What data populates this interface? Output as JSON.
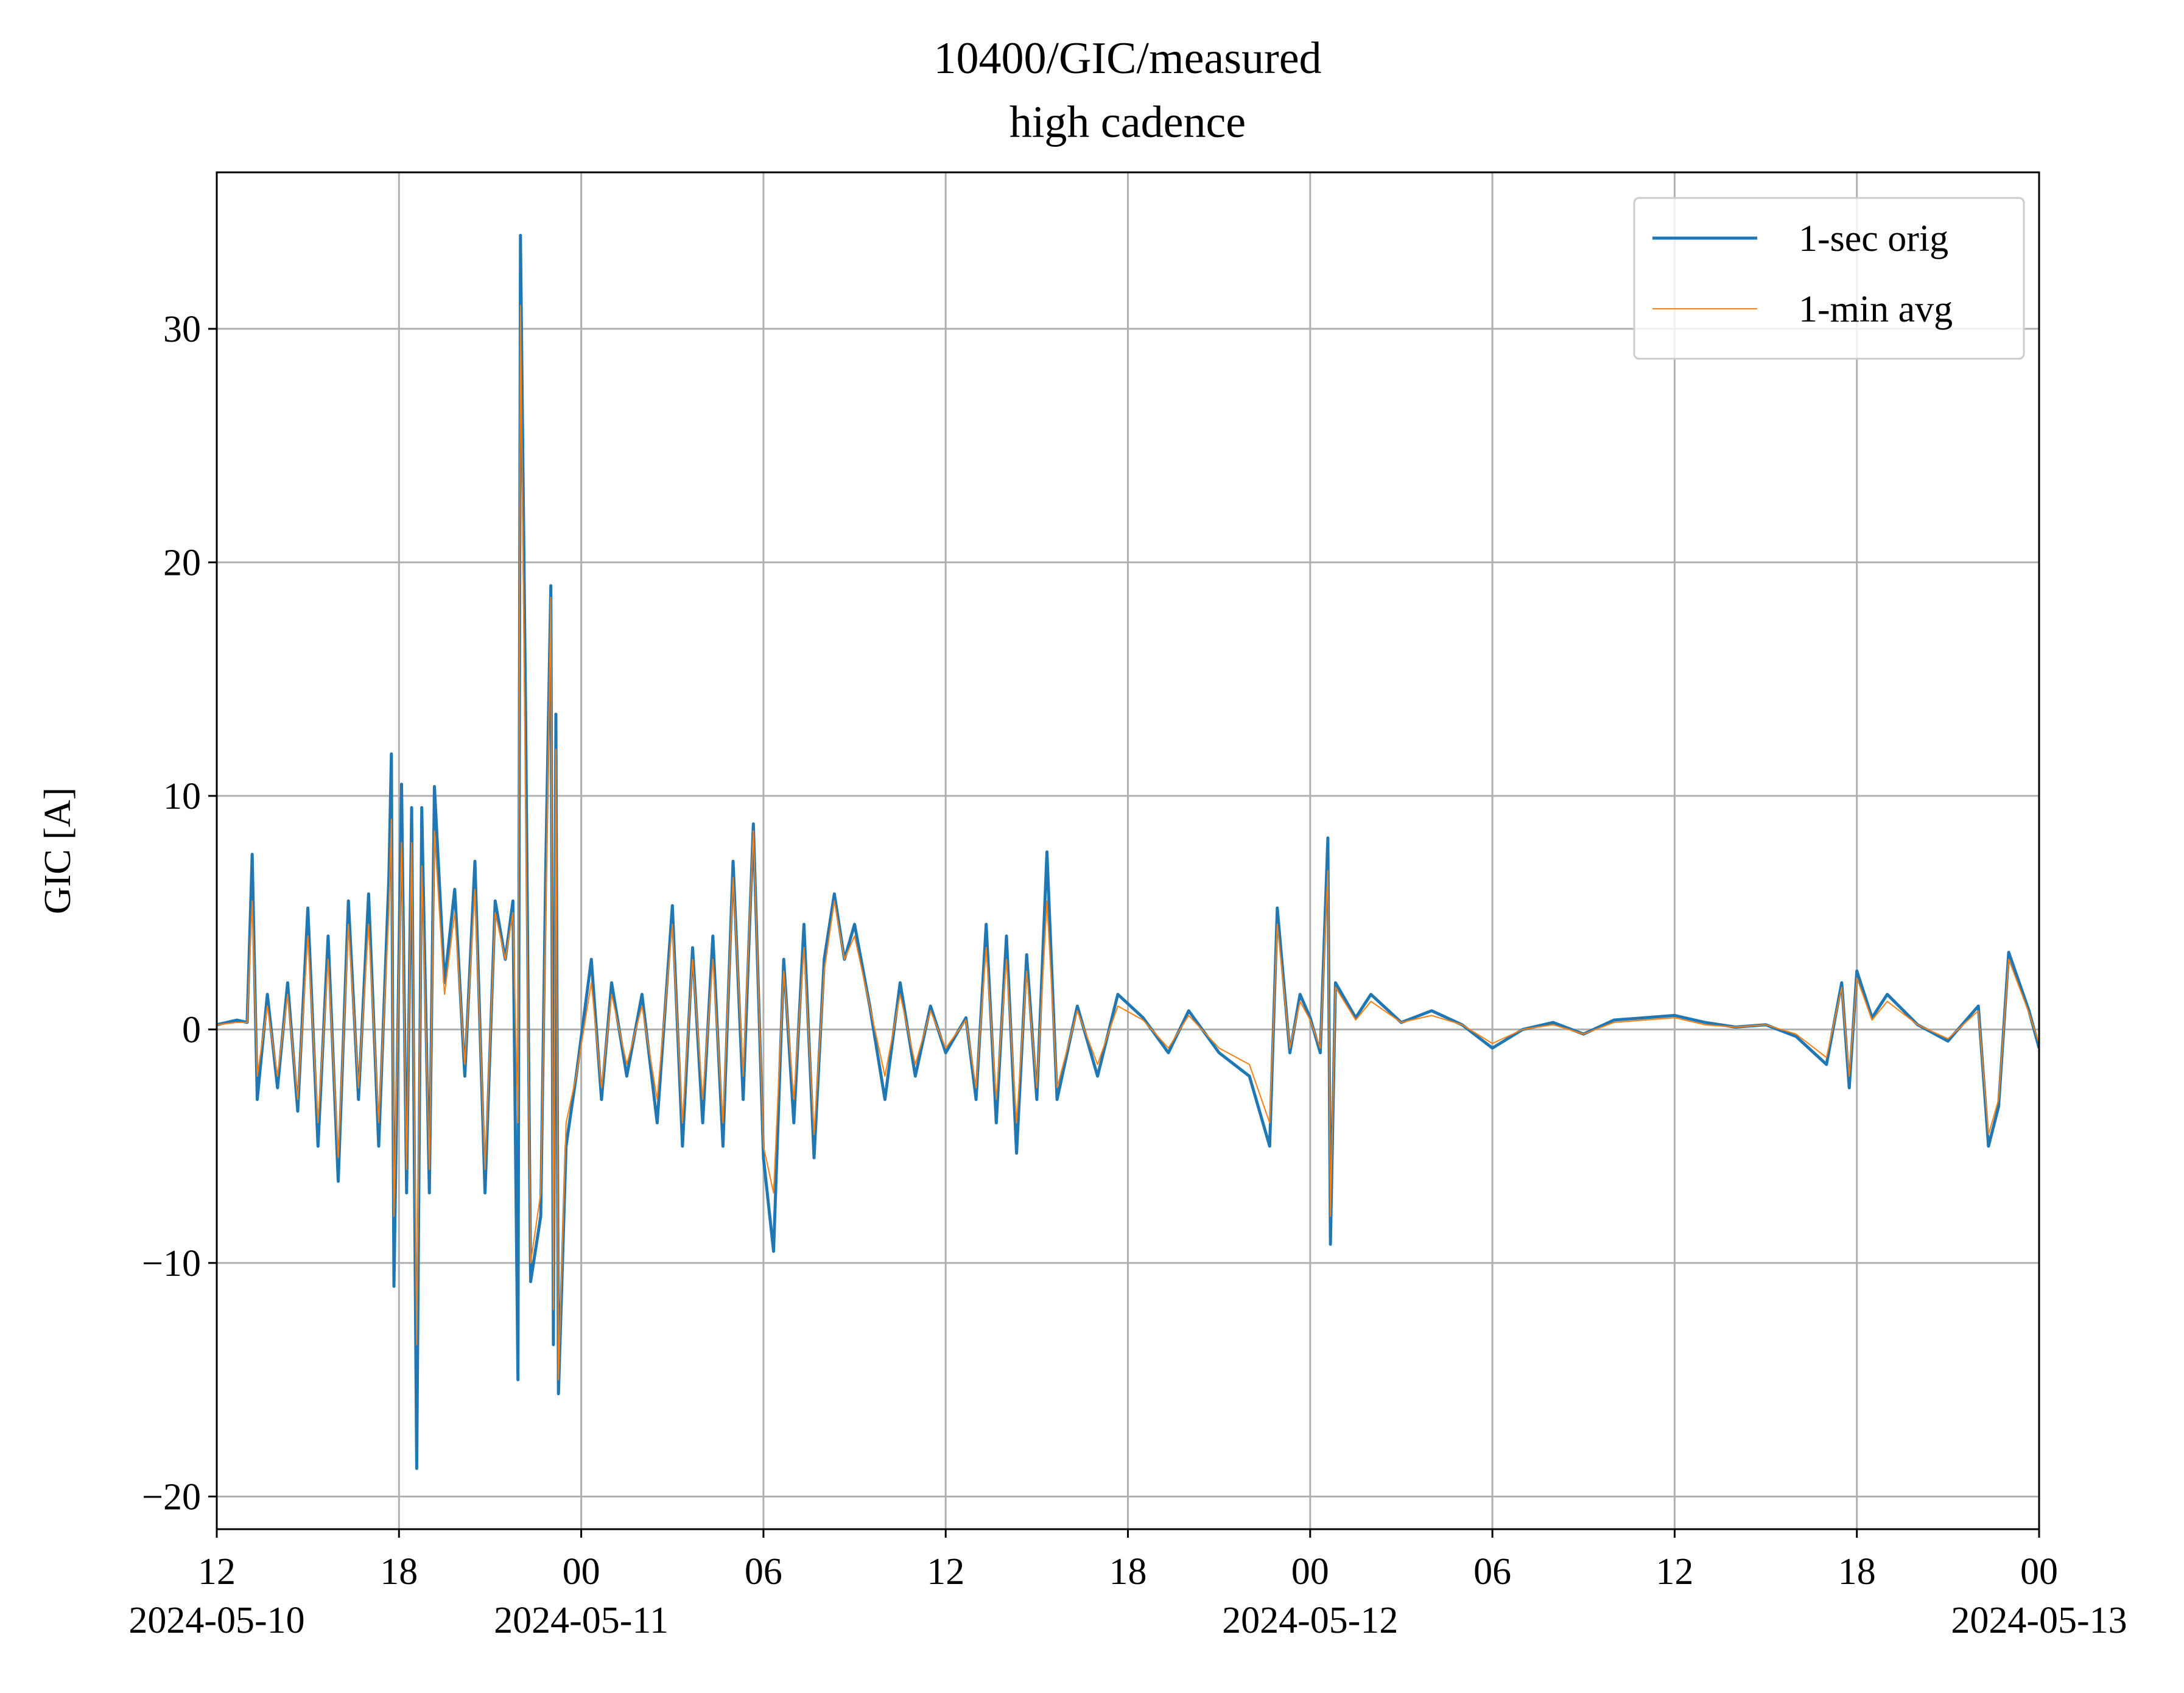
{
  "chart_data": {
    "type": "line",
    "title": "10400/GIC/measured",
    "subtitle": "high cadence",
    "y_label": "GIC [A]",
    "x": [
      "2024-05-10 12:00",
      "2024-05-10 12:40",
      "2024-05-10 13:00",
      "2024-05-10 13:10",
      "2024-05-10 13:20",
      "2024-05-10 13:40",
      "2024-05-10 14:00",
      "2024-05-10 14:20",
      "2024-05-10 14:40",
      "2024-05-10 15:00",
      "2024-05-10 15:20",
      "2024-05-10 15:40",
      "2024-05-10 16:00",
      "2024-05-10 16:20",
      "2024-05-10 16:40",
      "2024-05-10 17:00",
      "2024-05-10 17:20",
      "2024-05-10 17:40",
      "2024-05-10 17:45",
      "2024-05-10 17:50",
      "2024-05-10 18:05",
      "2024-05-10 18:15",
      "2024-05-10 18:25",
      "2024-05-10 18:35",
      "2024-05-10 18:45",
      "2024-05-10 19:00",
      "2024-05-10 19:10",
      "2024-05-10 19:30",
      "2024-05-10 19:50",
      "2024-05-10 20:10",
      "2024-05-10 20:30",
      "2024-05-10 20:50",
      "2024-05-10 21:10",
      "2024-05-10 21:30",
      "2024-05-10 21:45",
      "2024-05-10 21:55",
      "2024-05-10 22:00",
      "2024-05-10 22:10",
      "2024-05-10 22:20",
      "2024-05-10 22:40",
      "2024-05-10 22:50",
      "2024-05-10 23:00",
      "2024-05-10 23:05",
      "2024-05-10 23:10",
      "2024-05-10 23:15",
      "2024-05-10 23:30",
      "2024-05-10 23:50",
      "2024-05-11 00:20",
      "2024-05-11 00:40",
      "2024-05-11 01:00",
      "2024-05-11 01:30",
      "2024-05-11 02:00",
      "2024-05-11 02:30",
      "2024-05-11 03:00",
      "2024-05-11 03:20",
      "2024-05-11 03:40",
      "2024-05-11 04:00",
      "2024-05-11 04:20",
      "2024-05-11 04:40",
      "2024-05-11 05:00",
      "2024-05-11 05:20",
      "2024-05-11 05:40",
      "2024-05-11 06:00",
      "2024-05-11 06:20",
      "2024-05-11 06:40",
      "2024-05-11 07:00",
      "2024-05-11 07:20",
      "2024-05-11 07:40",
      "2024-05-11 08:00",
      "2024-05-11 08:20",
      "2024-05-11 08:40",
      "2024-05-11 09:00",
      "2024-05-11 09:30",
      "2024-05-11 10:00",
      "2024-05-11 10:30",
      "2024-05-11 11:00",
      "2024-05-11 11:30",
      "2024-05-11 12:00",
      "2024-05-11 12:40",
      "2024-05-11 13:00",
      "2024-05-11 13:20",
      "2024-05-11 13:40",
      "2024-05-11 14:00",
      "2024-05-11 14:20",
      "2024-05-11 14:40",
      "2024-05-11 15:00",
      "2024-05-11 15:20",
      "2024-05-11 15:40",
      "2024-05-11 16:20",
      "2024-05-11 17:00",
      "2024-05-11 17:40",
      "2024-05-11 18:30",
      "2024-05-11 19:20",
      "2024-05-11 20:00",
      "2024-05-11 21:00",
      "2024-05-11 22:00",
      "2024-05-11 22:40",
      "2024-05-11 22:55",
      "2024-05-11 23:20",
      "2024-05-11 23:40",
      "2024-05-12 00:00",
      "2024-05-12 00:20",
      "2024-05-12 00:35",
      "2024-05-12 00:40",
      "2024-05-12 00:50",
      "2024-05-12 01:30",
      "2024-05-12 02:00",
      "2024-05-12 03:00",
      "2024-05-12 04:00",
      "2024-05-12 05:00",
      "2024-05-12 06:00",
      "2024-05-12 07:00",
      "2024-05-12 08:00",
      "2024-05-12 09:00",
      "2024-05-12 10:00",
      "2024-05-12 11:00",
      "2024-05-12 12:00",
      "2024-05-12 13:00",
      "2024-05-12 14:00",
      "2024-05-12 15:00",
      "2024-05-12 16:00",
      "2024-05-12 17:00",
      "2024-05-12 17:30",
      "2024-05-12 17:45",
      "2024-05-12 18:00",
      "2024-05-12 18:30",
      "2024-05-12 19:00",
      "2024-05-12 20:00",
      "2024-05-12 21:00",
      "2024-05-12 22:00",
      "2024-05-12 22:20",
      "2024-05-12 22:40",
      "2024-05-12 23:00",
      "2024-05-12 23:40",
      "2024-05-13 00:00"
    ],
    "series": [
      {
        "name": "1-sec orig",
        "color": "#1f77b4",
        "width": 5,
        "values": [
          0.2,
          0.4,
          0.3,
          7.5,
          -3.0,
          1.5,
          -2.5,
          2.0,
          -3.5,
          5.2,
          -5.0,
          4.0,
          -6.5,
          5.5,
          -3.0,
          5.8,
          -5.0,
          6.5,
          11.8,
          -11,
          10.5,
          -7,
          9.5,
          -18.8,
          9.5,
          -7,
          10.4,
          2,
          6,
          -2,
          7.2,
          -7,
          5.5,
          3,
          5.5,
          -15,
          34,
          14,
          -10.8,
          -8,
          7,
          19,
          -13.5,
          13.5,
          -15.6,
          -5,
          -2,
          3,
          -3,
          2,
          -2,
          1.5,
          -4,
          5.3,
          -5,
          3.5,
          -4,
          4,
          -5,
          7.2,
          -3,
          8.8,
          -5.5,
          -9.5,
          3,
          -4,
          4.5,
          -5.5,
          3,
          5.8,
          3,
          4.5,
          1,
          -3,
          2,
          -2,
          1,
          -1,
          0.5,
          -3,
          4.5,
          -4,
          4,
          -5.3,
          3.2,
          -3,
          7.6,
          -3,
          1,
          -2,
          1.5,
          0.5,
          -1,
          0.8,
          -1,
          -2,
          -5,
          5.2,
          -1,
          1.5,
          0.5,
          -1,
          8.2,
          -9.2,
          2,
          0.5,
          1.5,
          0.3,
          0.8,
          0.2,
          -0.8,
          0,
          0.3,
          -0.2,
          0.4,
          0.5,
          0.6,
          0.3,
          0.1,
          0.2,
          -0.3,
          -1.5,
          2,
          -2.5,
          2.5,
          0.5,
          1.5,
          0.2,
          -0.5,
          1,
          -5,
          -3.3,
          3.3,
          0.8,
          -0.8
        ]
      },
      {
        "name": "1-min avg",
        "color": "#ff7f0e",
        "width": 2,
        "values": [
          0.2,
          0.3,
          0.3,
          5.5,
          -2.0,
          1.0,
          -2.0,
          1.5,
          -3.0,
          4.0,
          -4.0,
          3.0,
          -5.5,
          4.5,
          -2.5,
          4.5,
          -4.0,
          5.0,
          9,
          -8,
          8,
          -6,
          8,
          -13.5,
          7,
          -6,
          8.5,
          1.5,
          5,
          -1.5,
          6,
          -6,
          5,
          3,
          5,
          -4,
          31,
          10,
          -10,
          -7,
          5,
          18.5,
          -12,
          12,
          -15,
          -4,
          -2,
          2,
          -2.5,
          1.5,
          -1.5,
          1,
          -3,
          4.5,
          -4,
          3,
          -3,
          3,
          -4,
          6.5,
          -2,
          8.5,
          -5,
          -7,
          2.5,
          -3,
          3.5,
          -4.5,
          2.5,
          5.5,
          3,
          4,
          1,
          -2,
          1.5,
          -1.5,
          0.8,
          -0.8,
          0.4,
          -2.5,
          3.5,
          -3,
          3,
          -4,
          2.5,
          -2.5,
          5.5,
          -2.5,
          0.8,
          -1.5,
          1,
          0.4,
          -0.8,
          0.6,
          -0.8,
          -1.5,
          -4,
          4.5,
          -0.8,
          1.2,
          0.4,
          -0.8,
          6.8,
          -8,
          1.8,
          0.4,
          1.2,
          0.3,
          0.6,
          0.2,
          -0.6,
          0,
          0.2,
          -0.2,
          0.3,
          0.4,
          0.5,
          0.2,
          0.1,
          0.2,
          -0.2,
          -1.2,
          1.8,
          -2,
          2.2,
          0.4,
          1.2,
          0.2,
          -0.4,
          0.8,
          -4.5,
          -3,
          3,
          0.7,
          -0.6
        ]
      }
    ],
    "xlim": [
      "2024-05-10 12:00",
      "2024-05-13 00:00"
    ],
    "xticks": [
      {
        "value": "2024-05-10 12:00",
        "label": "12\n2024-05-10"
      },
      {
        "value": "2024-05-10 18:00",
        "label": "18"
      },
      {
        "value": "2024-05-11 00:00",
        "label": "00\n2024-05-11"
      },
      {
        "value": "2024-05-11 06:00",
        "label": "06"
      },
      {
        "value": "2024-05-11 12:00",
        "label": "12"
      },
      {
        "value": "2024-05-11 18:00",
        "label": "18"
      },
      {
        "value": "2024-05-12 00:00",
        "label": "00\n2024-05-12"
      },
      {
        "value": "2024-05-12 06:00",
        "label": "06"
      },
      {
        "value": "2024-05-12 12:00",
        "label": "12"
      },
      {
        "value": "2024-05-12 18:00",
        "label": "18"
      },
      {
        "value": "2024-05-13 00:00",
        "label": "00\n2024-05-13"
      }
    ],
    "ylim": [
      -21.4,
      36.7
    ],
    "yticks": [
      {
        "value": -20,
        "label": "−20"
      },
      {
        "value": -10,
        "label": "−10"
      },
      0,
      10,
      20,
      30
    ],
    "grid": true,
    "legend": "upper right"
  }
}
